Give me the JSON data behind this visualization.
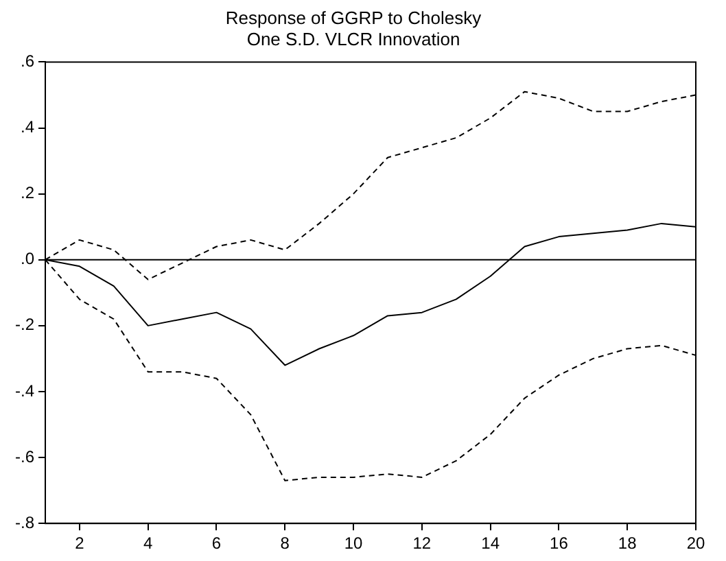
{
  "chart_data": {
    "type": "line",
    "title": "Response of GGRP to Cholesky",
    "subtitle": "One S.D. VLCR Innovation",
    "x": [
      1,
      2,
      3,
      4,
      5,
      6,
      7,
      8,
      9,
      10,
      11,
      12,
      13,
      14,
      15,
      16,
      17,
      18,
      19,
      20
    ],
    "series": [
      {
        "color": "#000000",
        "line_style": "solid",
        "values": [
          0,
          -0.02,
          -0.08,
          -0.2,
          -0.18,
          -0.16,
          -0.21,
          -0.32,
          -0.27,
          -0.23,
          -0.17,
          -0.16,
          -0.12,
          -0.05,
          0.04,
          0.07,
          0.08,
          0.09,
          0.11,
          0.1
        ]
      },
      {
        "color": "#000000",
        "line_style": "dashed",
        "values": [
          0,
          0.06,
          0.03,
          -0.06,
          -0.01,
          0.04,
          0.06,
          0.03,
          0.11,
          0.2,
          0.31,
          0.34,
          0.37,
          0.43,
          0.51,
          0.49,
          0.45,
          0.45,
          0.48,
          0.5
        ]
      },
      {
        "color": "#000000",
        "line_style": "dashed",
        "values": [
          0,
          -0.12,
          -0.18,
          -0.34,
          -0.34,
          -0.36,
          -0.47,
          -0.67,
          -0.66,
          -0.66,
          -0.65,
          -0.66,
          -0.61,
          -0.53,
          -0.42,
          -0.35,
          -0.3,
          -0.27,
          -0.26,
          -0.29
        ]
      }
    ],
    "xlim": [
      1,
      20
    ],
    "xticks": [
      2,
      4,
      6,
      8,
      10,
      12,
      14,
      16,
      18,
      20
    ],
    "ylim": [
      -0.8,
      0.6
    ],
    "yticks": [
      {
        "value": -0.8,
        "label": "-.8"
      },
      {
        "value": -0.6,
        "label": "-.6"
      },
      {
        "value": -0.4,
        "label": "-.4"
      },
      {
        "value": -0.2,
        "label": "-.2"
      },
      {
        "value": 0,
        "label": ".0"
      },
      {
        "value": 0.2,
        "label": ".2"
      },
      {
        "value": 0.4,
        "label": ".4"
      },
      {
        "value": 0.6,
        "label": ".6"
      }
    ],
    "ref_lines": [
      {
        "axis": "y",
        "value": 0,
        "color": "#000000"
      }
    ],
    "grid": false,
    "legend": false,
    "marker": "none"
  }
}
